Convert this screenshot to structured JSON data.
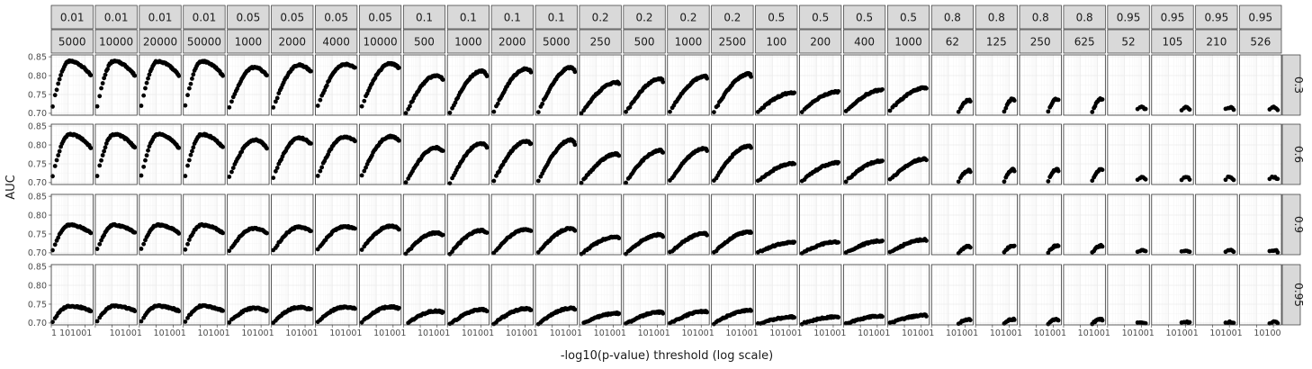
{
  "chart_data": {
    "type": "scatter",
    "xlabel": "-log10(p-value) threshold (log scale)",
    "ylabel": "AUC",
    "x_scale": "log10",
    "xlim": [
      1,
      300
    ],
    "ylim": [
      0.695,
      0.855
    ],
    "y_ticks": [
      0.7,
      0.75,
      0.8,
      0.85
    ],
    "y_tick_labels": [
      "0.70",
      "0.75",
      "0.80",
      "0.85"
    ],
    "x_ticks": [
      1,
      10,
      100
    ],
    "x_tick_labels": [
      "1",
      "10",
      "100"
    ],
    "x_tick_text_first_panel": "1 101001",
    "x_tick_text_other_panels": "101001",
    "x_tick_text_last_panel": "10100",
    "grid": true,
    "strip_top_row1": [
      "0.01",
      "0.01",
      "0.01",
      "0.01",
      "0.05",
      "0.05",
      "0.05",
      "0.05",
      "0.1",
      "0.1",
      "0.1",
      "0.1",
      "0.2",
      "0.2",
      "0.2",
      "0.2",
      "0.5",
      "0.5",
      "0.5",
      "0.5",
      "0.8",
      "0.8",
      "0.8",
      "0.8",
      "0.95",
      "0.95",
      "0.95",
      "0.95"
    ],
    "strip_top_row2": [
      "5000",
      "10000",
      "20000",
      "50000",
      "1000",
      "2000",
      "4000",
      "10000",
      "500",
      "1000",
      "2000",
      "5000",
      "250",
      "500",
      "1000",
      "2500",
      "100",
      "200",
      "400",
      "1000",
      "62",
      "125",
      "250",
      "625",
      "52",
      "105",
      "210",
      "526"
    ],
    "strip_right": [
      "0.3",
      "0.6",
      "0.9",
      "0.95"
    ],
    "col_params": [
      {
        "left": 0.72,
        "peak": 0.838,
        "right": 0.8,
        "xmin": 1.2,
        "xmax": 220,
        "xpeak": 12,
        "n": 40
      },
      {
        "left": 0.72,
        "peak": 0.838,
        "right": 0.8,
        "xmin": 1.3,
        "xmax": 220,
        "xpeak": 12,
        "n": 40
      },
      {
        "left": 0.72,
        "peak": 0.838,
        "right": 0.8,
        "xmin": 1.3,
        "xmax": 220,
        "xpeak": 12,
        "n": 40
      },
      {
        "left": 0.72,
        "peak": 0.838,
        "right": 0.8,
        "xmin": 1.3,
        "xmax": 220,
        "xpeak": 12,
        "n": 40
      },
      {
        "left": 0.715,
        "peak": 0.822,
        "right": 0.8,
        "xmin": 1.3,
        "xmax": 220,
        "xpeak": 40,
        "n": 40
      },
      {
        "left": 0.715,
        "peak": 0.828,
        "right": 0.81,
        "xmin": 1.3,
        "xmax": 220,
        "xpeak": 45,
        "n": 40
      },
      {
        "left": 0.72,
        "peak": 0.83,
        "right": 0.82,
        "xmin": 1.4,
        "xmax": 220,
        "xpeak": 55,
        "n": 40
      },
      {
        "left": 0.72,
        "peak": 0.832,
        "right": 0.82,
        "xmin": 1.4,
        "xmax": 220,
        "xpeak": 70,
        "n": 40
      },
      {
        "left": 0.7,
        "peak": 0.8,
        "right": 0.79,
        "xmin": 1.4,
        "xmax": 220,
        "xpeak": 90,
        "n": 40
      },
      {
        "left": 0.7,
        "peak": 0.812,
        "right": 0.8,
        "xmin": 1.4,
        "xmax": 220,
        "xpeak": 110,
        "n": 40
      },
      {
        "left": 0.705,
        "peak": 0.818,
        "right": 0.81,
        "xmin": 1.4,
        "xmax": 220,
        "xpeak": 120,
        "n": 40
      },
      {
        "left": 0.705,
        "peak": 0.822,
        "right": 0.81,
        "xmin": 1.5,
        "xmax": 220,
        "xpeak": 140,
        "n": 40
      },
      {
        "left": 0.7,
        "peak": 0.782,
        "right": 0.778,
        "xmin": 1.3,
        "xmax": 220,
        "xpeak": 170,
        "n": 40
      },
      {
        "left": 0.702,
        "peak": 0.792,
        "right": 0.785,
        "xmin": 1.4,
        "xmax": 220,
        "xpeak": 170,
        "n": 40
      },
      {
        "left": 0.705,
        "peak": 0.798,
        "right": 0.792,
        "xmin": 1.4,
        "xmax": 220,
        "xpeak": 180,
        "n": 40
      },
      {
        "left": 0.705,
        "peak": 0.805,
        "right": 0.798,
        "xmin": 1.4,
        "xmax": 220,
        "xpeak": 190,
        "n": 40
      },
      {
        "left": 0.705,
        "peak": 0.755,
        "right": 0.755,
        "xmin": 1.4,
        "xmax": 200,
        "xpeak": 190,
        "n": 36
      },
      {
        "left": 0.705,
        "peak": 0.757,
        "right": 0.757,
        "xmin": 1.4,
        "xmax": 200,
        "xpeak": 190,
        "n": 36
      },
      {
        "left": 0.705,
        "peak": 0.762,
        "right": 0.762,
        "xmin": 1.4,
        "xmax": 200,
        "xpeak": 190,
        "n": 36
      },
      {
        "left": 0.708,
        "peak": 0.768,
        "right": 0.766,
        "xmin": 1.4,
        "xmax": 200,
        "xpeak": 190,
        "n": 36
      },
      {
        "left": 0.705,
        "peak": 0.735,
        "right": 0.733,
        "xmin": 40,
        "xmax": 200,
        "xpeak": 160,
        "n": 12
      },
      {
        "left": 0.705,
        "peak": 0.738,
        "right": 0.735,
        "xmin": 50,
        "xmax": 200,
        "xpeak": 160,
        "n": 12
      },
      {
        "left": 0.705,
        "peak": 0.738,
        "right": 0.735,
        "xmin": 50,
        "xmax": 200,
        "xpeak": 160,
        "n": 12
      },
      {
        "left": 0.705,
        "peak": 0.738,
        "right": 0.735,
        "xmin": 50,
        "xmax": 200,
        "xpeak": 170,
        "n": 12
      },
      {
        "left": 0.71,
        "peak": 0.716,
        "right": 0.71,
        "xmin": 60,
        "xmax": 180,
        "xpeak": 100,
        "n": 6
      },
      {
        "left": 0.71,
        "peak": 0.716,
        "right": 0.71,
        "xmin": 60,
        "xmax": 180,
        "xpeak": 100,
        "n": 6
      },
      {
        "left": 0.71,
        "peak": 0.716,
        "right": 0.71,
        "xmin": 60,
        "xmax": 180,
        "xpeak": 100,
        "n": 6
      },
      {
        "left": 0.71,
        "peak": 0.716,
        "right": 0.71,
        "xmin": 60,
        "xmax": 180,
        "xpeak": 100,
        "n": 6
      }
    ],
    "row_shift": [
      1.0,
      0.93,
      0.55,
      0.35
    ]
  }
}
